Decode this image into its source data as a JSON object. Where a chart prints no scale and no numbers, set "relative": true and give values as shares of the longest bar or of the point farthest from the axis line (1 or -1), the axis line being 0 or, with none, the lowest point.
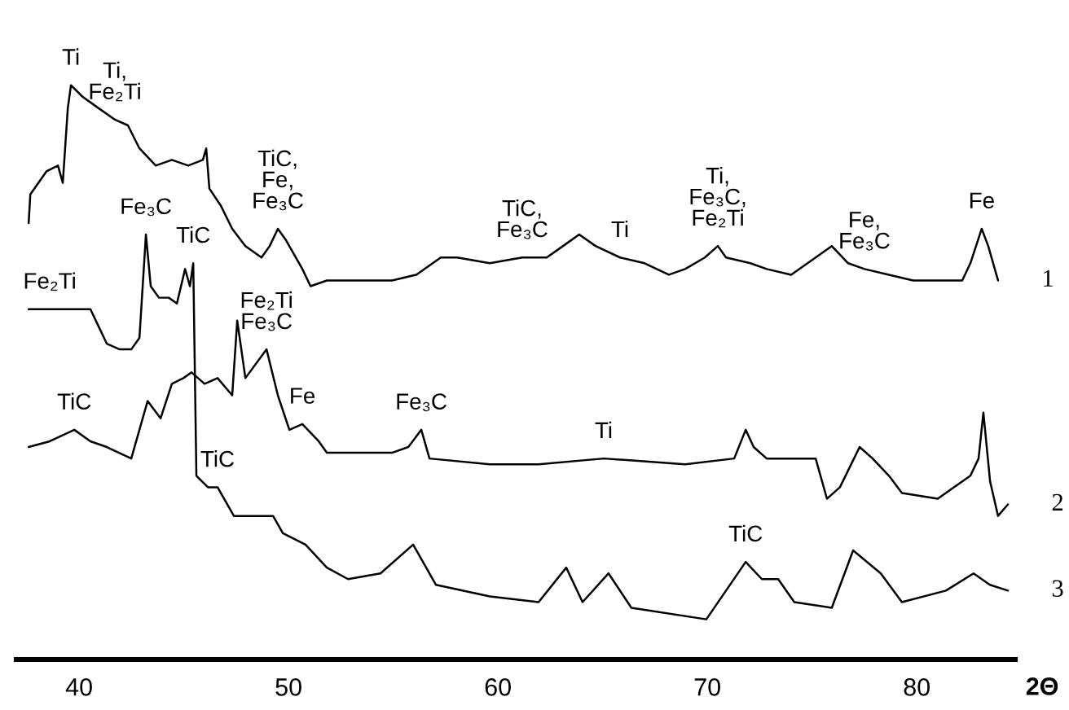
{
  "chart_data": {
    "type": "line",
    "relative": true,
    "xlabel": "2Θ",
    "xlim": [
      37,
      84.7
    ],
    "xticks": [
      40,
      50,
      60,
      70,
      80
    ],
    "legend": false,
    "grid": false,
    "marker": "none",
    "line_style": "solid",
    "series": [
      {
        "name": "1",
        "color": "#000000",
        "x": [
          37.59,
          37.67,
          38.44,
          38.99,
          39.22,
          39.46,
          39.61,
          40.16,
          40.93,
          41.71,
          42.33,
          42.88,
          43.66,
          44.43,
          45.21,
          45.91,
          46.07,
          46.22,
          46.77,
          47.31,
          47.94,
          48.71,
          49.1,
          49.49,
          49.88,
          50.66,
          51.05,
          51.83,
          53.38,
          54.94,
          56.1,
          57.27,
          58.05,
          59.61,
          61.16,
          62.33,
          63.11,
          63.88,
          64.66,
          65.83,
          67.0,
          68.16,
          68.94,
          69.88,
          70.5,
          70.89,
          72.05,
          72.83,
          74.0,
          75.17,
          75.94,
          76.72,
          77.5,
          78.67,
          79.83,
          82.17,
          82.56,
          83.1,
          83.41,
          83.88
        ],
        "values": [
          0.76,
          0.81,
          0.85,
          0.86,
          0.83,
          0.96,
          1.0,
          0.98,
          0.96,
          0.94,
          0.93,
          0.89,
          0.86,
          0.87,
          0.86,
          0.87,
          0.89,
          0.82,
          0.79,
          0.75,
          0.72,
          0.7,
          0.72,
          0.75,
          0.73,
          0.68,
          0.65,
          0.66,
          0.66,
          0.66,
          0.67,
          0.7,
          0.7,
          0.69,
          0.7,
          0.7,
          0.72,
          0.74,
          0.72,
          0.7,
          0.69,
          0.67,
          0.68,
          0.7,
          0.72,
          0.7,
          0.69,
          0.68,
          0.67,
          0.7,
          0.72,
          0.69,
          0.68,
          0.67,
          0.66,
          0.66,
          0.69,
          0.75,
          0.72,
          0.66
        ]
      },
      {
        "name": "2",
        "color": "#000000",
        "x": [
          37.59,
          38.6,
          39.77,
          40.54,
          41.32,
          42.49,
          43.27,
          43.89,
          44.43,
          44.98,
          45.37,
          45.99,
          46.61,
          47.31,
          47.55,
          47.94,
          48.95,
          49.49,
          50.04,
          50.66,
          51.44,
          51.83,
          53.38,
          54.94,
          55.72,
          56.34,
          56.73,
          59.61,
          61.94,
          65.05,
          68.94,
          71.28,
          71.83,
          72.21,
          72.83,
          75.17,
          75.71,
          76.33,
          77.27,
          77.89,
          78.67,
          79.29,
          81.0,
          82.56,
          82.95,
          83.18,
          83.5,
          83.88,
          84.35
        ],
        "values": [
          0.37,
          0.38,
          0.4,
          0.38,
          0.37,
          0.35,
          0.45,
          0.42,
          0.48,
          0.49,
          0.5,
          0.48,
          0.49,
          0.46,
          0.59,
          0.49,
          0.54,
          0.46,
          0.4,
          0.41,
          0.38,
          0.36,
          0.36,
          0.36,
          0.37,
          0.4,
          0.35,
          0.34,
          0.34,
          0.35,
          0.34,
          0.35,
          0.4,
          0.37,
          0.35,
          0.35,
          0.28,
          0.3,
          0.37,
          0.35,
          0.32,
          0.29,
          0.28,
          0.32,
          0.35,
          0.43,
          0.31,
          0.25,
          0.27
        ]
      },
      {
        "name": "3",
        "color": "#000000",
        "x": [
          37.59,
          38.6,
          39.77,
          40.54,
          40.93,
          41.32,
          41.94,
          42.49,
          42.88,
          43.19,
          43.42,
          43.81,
          44.28,
          44.67,
          45.06,
          45.29,
          45.45,
          45.6,
          46.15,
          46.61,
          47.39,
          49.26,
          49.73,
          50.81,
          51.83,
          52.84,
          54.39,
          55.95,
          57.04,
          59.61,
          61.94,
          63.26,
          64.04,
          65.28,
          66.37,
          69.95,
          71.83,
          72.6,
          73.38,
          74.15,
          75.94,
          76.96,
          78.28,
          79.29,
          81.39,
          82.71,
          83.49,
          84.35
        ],
        "values": [
          0.61,
          0.61,
          0.61,
          0.61,
          0.58,
          0.55,
          0.54,
          0.54,
          0.56,
          0.74,
          0.65,
          0.63,
          0.63,
          0.62,
          0.68,
          0.65,
          0.69,
          0.32,
          0.3,
          0.3,
          0.25,
          0.25,
          0.22,
          0.2,
          0.16,
          0.14,
          0.15,
          0.2,
          0.13,
          0.11,
          0.1,
          0.16,
          0.1,
          0.15,
          0.09,
          0.07,
          0.17,
          0.14,
          0.14,
          0.1,
          0.09,
          0.19,
          0.15,
          0.1,
          0.12,
          0.15,
          0.13,
          0.12
        ]
      }
    ],
    "annotations": [
      {
        "text": "Ti",
        "x": 39.61,
        "y": 1.0
      },
      {
        "text": "Ti,\nFe₂Ti",
        "x": 41.71,
        "y": 0.94
      },
      {
        "text": "TiC,\nFe,\nFe₃C",
        "x": 49.49,
        "y": 0.75
      },
      {
        "text": "TiC,\nFe₃C",
        "x": 61.16,
        "y": 0.7
      },
      {
        "text": "Ti",
        "x": 65.83,
        "y": 0.7
      },
      {
        "text": "Ti,\nFe₃C,\nFe₂Ti",
        "x": 70.5,
        "y": 0.72
      },
      {
        "text": "Fe,\nFe₃C",
        "x": 77.5,
        "y": 0.68
      },
      {
        "text": "Fe",
        "x": 83.1,
        "y": 0.75
      },
      {
        "text": "Fe₃C",
        "x": 43.19,
        "y": 0.74
      },
      {
        "text": "Fe₂Ti",
        "x": 38.6,
        "y": 0.61
      },
      {
        "text": "TiC",
        "x": 45.45,
        "y": 0.69
      },
      {
        "text": "Fe₂Ti\nFe₃C",
        "x": 48.95,
        "y": 0.54
      },
      {
        "text": "TiC",
        "x": 39.77,
        "y": 0.4
      },
      {
        "text": "Fe",
        "x": 50.66,
        "y": 0.41
      },
      {
        "text": "Fe₃C",
        "x": 56.34,
        "y": 0.4
      },
      {
        "text": "Ti",
        "x": 65.05,
        "y": 0.35
      },
      {
        "text": "TiC",
        "x": 46.61,
        "y": 0.3
      },
      {
        "text": "TiC",
        "x": 71.83,
        "y": 0.17
      }
    ]
  }
}
